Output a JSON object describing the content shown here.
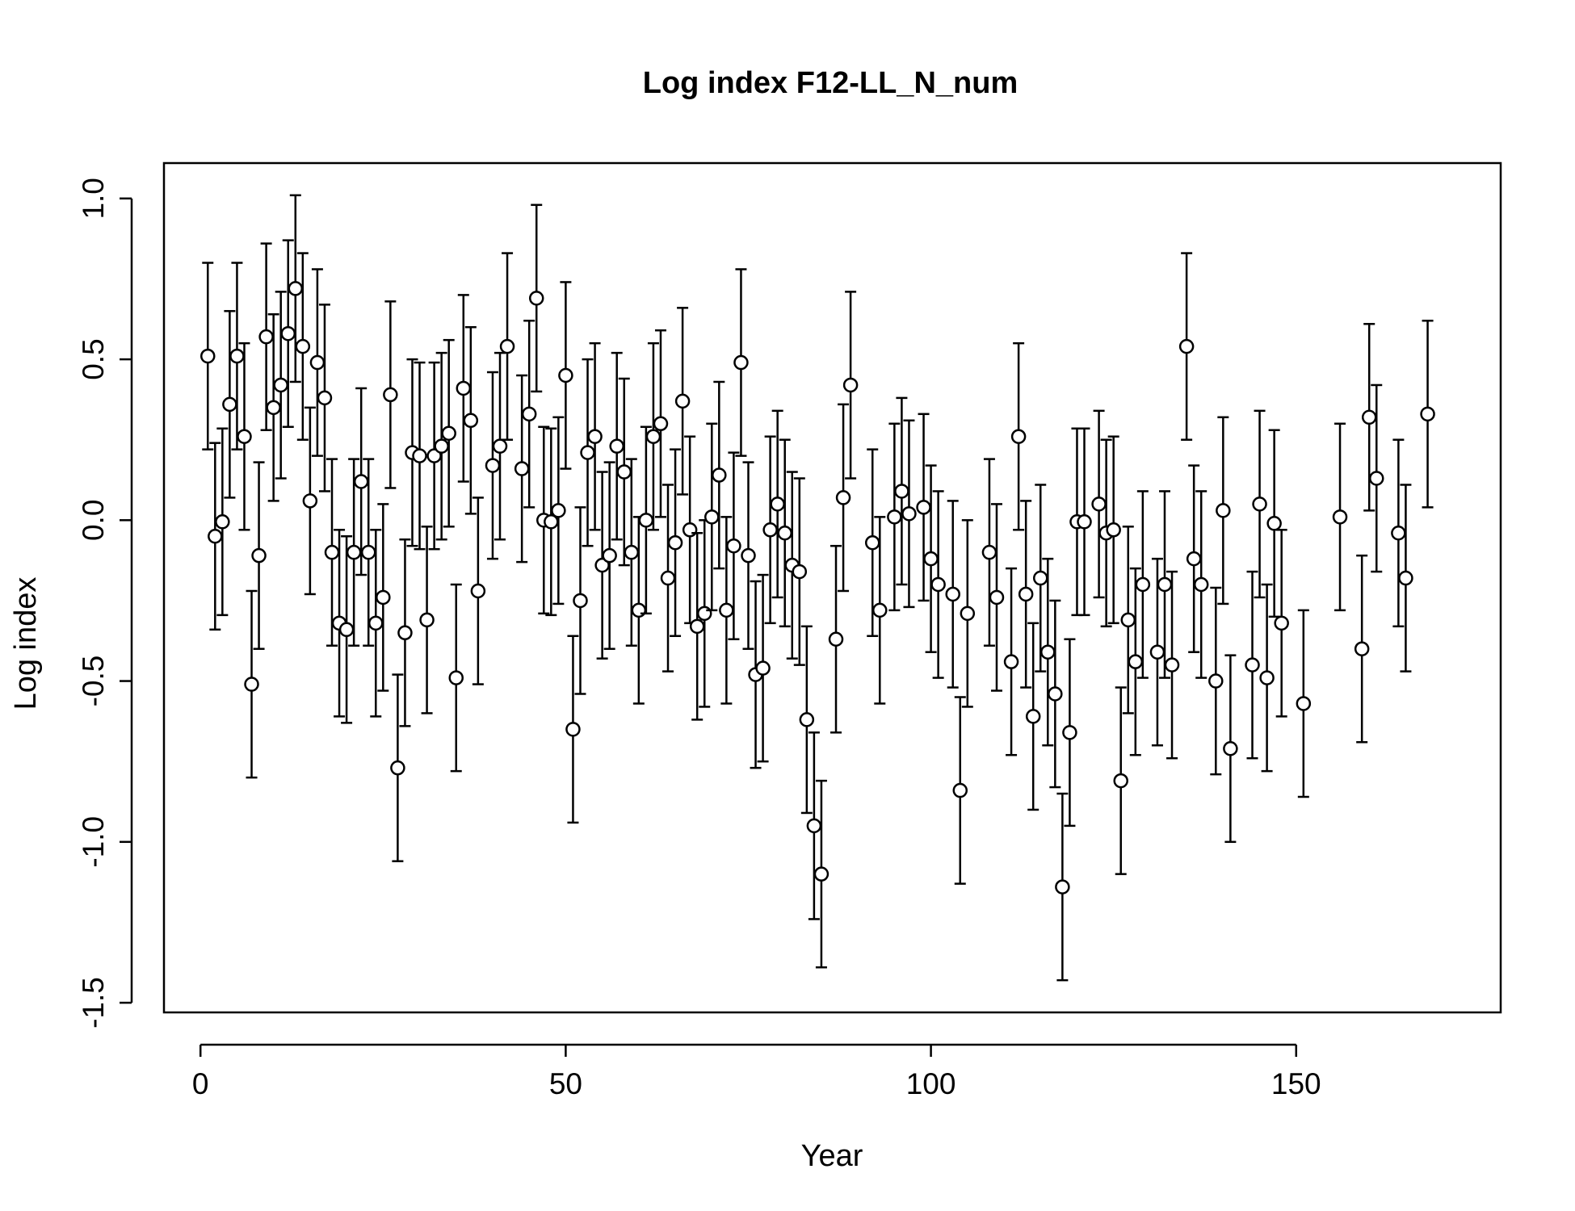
{
  "chart_data": {
    "type": "scatter",
    "title": "Log index F12-LL_N_num",
    "xlabel": "Year",
    "ylabel": "Log index",
    "xlim": [
      -5,
      178
    ],
    "ylim": [
      -1.53,
      1.11
    ],
    "x_ticks": [
      0,
      50,
      100,
      150
    ],
    "x_tick_labels": [
      "0",
      "50",
      "100",
      "150"
    ],
    "y_ticks": [
      -1.5,
      -1.0,
      -0.5,
      0.0,
      0.5,
      1.0
    ],
    "y_tick_labels": [
      "-1.5",
      "-1.0",
      "-0.5",
      "0.0",
      "0.5",
      "1.0"
    ],
    "grid": false,
    "error_half_width": 0.29,
    "series": [
      {
        "marker": "open-circle",
        "x": [
          1,
          2,
          3,
          4,
          5,
          6,
          7,
          8,
          9,
          10,
          11,
          12,
          13,
          14,
          15,
          16,
          17,
          18,
          19,
          20,
          21,
          22,
          23,
          24,
          25,
          26,
          27,
          28,
          29,
          30,
          31,
          32,
          33,
          34,
          35,
          36,
          37,
          38,
          40,
          41,
          42,
          44,
          45,
          46,
          47,
          48,
          49,
          50,
          51,
          52,
          53,
          54,
          55,
          56,
          57,
          58,
          59,
          60,
          61,
          62,
          63,
          64,
          65,
          66,
          67,
          68,
          69,
          70,
          71,
          72,
          73,
          74,
          75,
          76,
          77,
          78,
          79,
          80,
          81,
          82,
          83,
          84,
          85,
          87,
          88,
          89,
          92,
          93,
          95,
          96,
          97,
          99,
          100,
          101,
          103,
          104,
          105,
          108,
          109,
          111,
          112,
          113,
          114,
          115,
          116,
          117,
          118,
          119,
          120,
          121,
          123,
          124,
          125,
          126,
          127,
          128,
          129,
          131,
          132,
          133,
          135,
          136,
          137,
          139,
          140,
          141,
          144,
          145,
          146,
          147,
          148,
          151,
          156,
          159,
          160,
          161,
          164,
          165,
          168
        ],
        "y": [
          0.51,
          -0.05,
          -0.005,
          0.36,
          0.51,
          0.26,
          -0.51,
          -0.11,
          0.57,
          0.35,
          0.42,
          0.58,
          0.72,
          0.54,
          0.06,
          0.49,
          0.38,
          -0.1,
          -0.32,
          -0.34,
          -0.1,
          0.12,
          -0.1,
          -0.32,
          -0.24,
          0.39,
          -0.77,
          -0.35,
          0.21,
          0.2,
          -0.31,
          0.2,
          0.23,
          0.27,
          -0.49,
          0.41,
          0.31,
          -0.22,
          0.17,
          0.23,
          0.54,
          0.16,
          0.33,
          0.69,
          0.0,
          -0.005,
          0.03,
          0.45,
          -0.65,
          -0.25,
          0.21,
          0.26,
          -0.14,
          -0.11,
          0.23,
          0.15,
          -0.1,
          -0.28,
          0.0,
          0.26,
          0.3,
          -0.18,
          -0.07,
          0.37,
          -0.03,
          -0.33,
          -0.29,
          0.01,
          0.14,
          -0.28,
          -0.08,
          0.49,
          -0.11,
          -0.48,
          -0.46,
          -0.03,
          0.05,
          -0.04,
          -0.14,
          -0.16,
          -0.62,
          -0.95,
          -1.1,
          -0.37,
          0.07,
          0.42,
          -0.07,
          -0.28,
          0.01,
          0.09,
          0.02,
          0.04,
          -0.12,
          -0.2,
          -0.23,
          -0.84,
          -0.29,
          -0.1,
          -0.24,
          -0.44,
          0.26,
          -0.23,
          -0.61,
          -0.18,
          -0.41,
          -0.54,
          -1.14,
          -0.66,
          -0.005,
          -0.005,
          0.05,
          -0.04,
          -0.03,
          -0.81,
          -0.31,
          -0.44,
          -0.2,
          -0.41,
          -0.2,
          -0.45,
          0.54,
          -0.12,
          -0.2,
          -0.5,
          0.03,
          -0.71,
          -0.45,
          0.05,
          -0.49,
          -0.01,
          -0.32,
          -0.57,
          0.01,
          -0.4,
          0.32,
          0.13,
          -0.04,
          -0.18,
          0.33
        ]
      }
    ]
  }
}
